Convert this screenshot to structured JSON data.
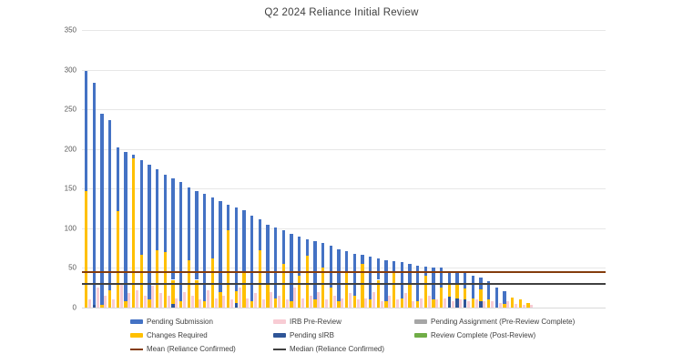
{
  "chart_data": {
    "type": "bar",
    "stacked": true,
    "title": "Q2 2024 Reliance Initial Review",
    "xlabel": "",
    "ylabel": "",
    "ylim": [
      0,
      350
    ],
    "y_ticks": [
      0,
      50,
      100,
      150,
      200,
      250,
      300,
      350
    ],
    "grid": true,
    "legend_position": "bottom",
    "stack_order_bottom_to_top": [
      "pending_sirb",
      "changes_required",
      "pending_submission"
    ],
    "companion_bar_series": "irb_pre_review",
    "series": {
      "pending_submission": {
        "name": "Pending Submission",
        "color": "#4472C4",
        "swatch": "bar"
      },
      "irb_pre_review": {
        "name": "IRB Pre-Review",
        "color": "#F8CCD4",
        "swatch": "bar"
      },
      "pending_assignment": {
        "name": "Pending Assignment (Pre-Review Complete)",
        "color": "#A6A6A6",
        "swatch": "bar"
      },
      "changes_required": {
        "name": "Changes Required",
        "color": "#FFC000",
        "swatch": "bar"
      },
      "pending_sirb": {
        "name": "Pending sIRB",
        "color": "#2F5597",
        "swatch": "bar"
      },
      "review_complete": {
        "name": "Review Complete (Post-Review)",
        "color": "#70AD47",
        "swatch": "bar"
      },
      "mean": {
        "name": "Mean (Reliance Confirmed)",
        "color": "#843C0C",
        "swatch": "line",
        "value": 45
      },
      "median": {
        "name": "Median (Reliance Confirmed)",
        "color": "#404040",
        "swatch": "line",
        "value": 30
      }
    },
    "legend_columns": [
      [
        "pending_submission",
        "changes_required",
        "mean"
      ],
      [
        "irb_pre_review",
        "pending_sirb",
        "median"
      ],
      [
        "pending_assignment",
        "review_complete"
      ]
    ],
    "bars": [
      {
        "pending_sirb": 0,
        "changes_required": 147,
        "pending_submission": 151,
        "irb_pre_review": 10
      },
      {
        "pending_sirb": 3,
        "changes_required": 0,
        "pending_submission": 280,
        "irb_pre_review": 25
      },
      {
        "pending_sirb": 0,
        "changes_required": 3,
        "pending_submission": 242,
        "irb_pre_review": 15
      },
      {
        "pending_sirb": 0,
        "changes_required": 22,
        "pending_submission": 214,
        "irb_pre_review": 10
      },
      {
        "pending_sirb": 0,
        "changes_required": 122,
        "pending_submission": 80,
        "irb_pre_review": 30
      },
      {
        "pending_sirb": 0,
        "changes_required": 8,
        "pending_submission": 188,
        "irb_pre_review": 18
      },
      {
        "pending_sirb": 0,
        "changes_required": 188,
        "pending_submission": 5,
        "irb_pre_review": 22
      },
      {
        "pending_sirb": 0,
        "changes_required": 66,
        "pending_submission": 120,
        "irb_pre_review": 15
      },
      {
        "pending_sirb": 0,
        "changes_required": 10,
        "pending_submission": 170,
        "irb_pre_review": 28
      },
      {
        "pending_sirb": 0,
        "changes_required": 72,
        "pending_submission": 102,
        "irb_pre_review": 18
      },
      {
        "pending_sirb": 0,
        "changes_required": 70,
        "pending_submission": 98,
        "irb_pre_review": 15
      },
      {
        "pending_sirb": 5,
        "changes_required": 30,
        "pending_submission": 128,
        "irb_pre_review": 12
      },
      {
        "pending_sirb": 0,
        "changes_required": 8,
        "pending_submission": 150,
        "irb_pre_review": 20
      },
      {
        "pending_sirb": 0,
        "changes_required": 60,
        "pending_submission": 92,
        "irb_pre_review": 15
      },
      {
        "pending_sirb": 0,
        "changes_required": 35,
        "pending_submission": 112,
        "irb_pre_review": 10
      },
      {
        "pending_sirb": 0,
        "changes_required": 8,
        "pending_submission": 135,
        "irb_pre_review": 22
      },
      {
        "pending_sirb": 0,
        "changes_required": 62,
        "pending_submission": 77,
        "irb_pre_review": 12
      },
      {
        "pending_sirb": 0,
        "changes_required": 20,
        "pending_submission": 114,
        "irb_pre_review": 15
      },
      {
        "pending_sirb": 0,
        "changes_required": 97,
        "pending_submission": 33,
        "irb_pre_review": 10
      },
      {
        "pending_sirb": 6,
        "changes_required": 15,
        "pending_submission": 105,
        "irb_pre_review": 25
      },
      {
        "pending_sirb": 0,
        "changes_required": 45,
        "pending_submission": 78,
        "irb_pre_review": 12
      },
      {
        "pending_sirb": 0,
        "changes_required": 8,
        "pending_submission": 108,
        "irb_pre_review": 18
      },
      {
        "pending_sirb": 0,
        "changes_required": 72,
        "pending_submission": 39,
        "irb_pre_review": 10
      },
      {
        "pending_sirb": 0,
        "changes_required": 30,
        "pending_submission": 75,
        "irb_pre_review": 20
      },
      {
        "pending_sirb": 0,
        "changes_required": 12,
        "pending_submission": 89,
        "irb_pre_review": 15
      },
      {
        "pending_sirb": 0,
        "changes_required": 55,
        "pending_submission": 42,
        "irb_pre_review": 10
      },
      {
        "pending_sirb": 0,
        "changes_required": 8,
        "pending_submission": 85,
        "irb_pre_review": 25
      },
      {
        "pending_sirb": 0,
        "changes_required": 40,
        "pending_submission": 50,
        "irb_pre_review": 12
      },
      {
        "pending_sirb": 0,
        "changes_required": 65,
        "pending_submission": 21,
        "irb_pre_review": 15
      },
      {
        "pending_sirb": 0,
        "changes_required": 10,
        "pending_submission": 74,
        "irb_pre_review": 20
      },
      {
        "pending_sirb": 0,
        "changes_required": 50,
        "pending_submission": 32,
        "irb_pre_review": 10
      },
      {
        "pending_sirb": 0,
        "changes_required": 25,
        "pending_submission": 53,
        "irb_pre_review": 15
      },
      {
        "pending_sirb": 0,
        "changes_required": 8,
        "pending_submission": 66,
        "irb_pre_review": 12
      },
      {
        "pending_sirb": 0,
        "changes_required": 45,
        "pending_submission": 26,
        "irb_pre_review": 18
      },
      {
        "pending_sirb": 0,
        "changes_required": 15,
        "pending_submission": 53,
        "irb_pre_review": 10
      },
      {
        "pending_sirb": 0,
        "changes_required": 55,
        "pending_submission": 11,
        "irb_pre_review": 12
      },
      {
        "pending_sirb": 0,
        "changes_required": 10,
        "pending_submission": 54,
        "irb_pre_review": 20
      },
      {
        "pending_sirb": 0,
        "changes_required": 35,
        "pending_submission": 27,
        "irb_pre_review": 8
      },
      {
        "pending_sirb": 0,
        "changes_required": 8,
        "pending_submission": 52,
        "irb_pre_review": 15
      },
      {
        "pending_sirb": 0,
        "changes_required": 45,
        "pending_submission": 13,
        "irb_pre_review": 10
      },
      {
        "pending_sirb": 0,
        "changes_required": 12,
        "pending_submission": 45,
        "irb_pre_review": 18
      },
      {
        "pending_sirb": 0,
        "changes_required": 30,
        "pending_submission": 25,
        "irb_pre_review": 8
      },
      {
        "pending_sirb": 0,
        "changes_required": 8,
        "pending_submission": 45,
        "irb_pre_review": 12
      },
      {
        "pending_sirb": 0,
        "changes_required": 40,
        "pending_submission": 12,
        "irb_pre_review": 15
      },
      {
        "pending_sirb": 0,
        "changes_required": 10,
        "pending_submission": 41,
        "irb_pre_review": 10
      },
      {
        "pending_sirb": 0,
        "changes_required": 25,
        "pending_submission": 25,
        "irb_pre_review": 12
      },
      {
        "pending_sirb": 14,
        "changes_required": 16,
        "pending_submission": 16,
        "irb_pre_review": 8
      },
      {
        "pending_sirb": 12,
        "changes_required": 18,
        "pending_submission": 16,
        "irb_pre_review": 10
      },
      {
        "pending_sirb": 10,
        "changes_required": 14,
        "pending_submission": 20,
        "irb_pre_review": 8
      },
      {
        "pending_sirb": 0,
        "changes_required": 12,
        "pending_submission": 28,
        "irb_pre_review": 10
      },
      {
        "pending_sirb": 8,
        "changes_required": 15,
        "pending_submission": 15,
        "irb_pre_review": 8
      },
      {
        "pending_sirb": 0,
        "changes_required": 10,
        "pending_submission": 23,
        "irb_pre_review": 8
      },
      {
        "pending_sirb": 0,
        "changes_required": 0,
        "pending_submission": 25,
        "irb_pre_review": 6
      },
      {
        "pending_sirb": 0,
        "changes_required": 5,
        "pending_submission": 16,
        "irb_pre_review": 8
      },
      {
        "pending_sirb": 0,
        "changes_required": 13,
        "pending_submission": 0,
        "irb_pre_review": 5
      },
      {
        "pending_sirb": 0,
        "changes_required": 10,
        "pending_submission": 0,
        "irb_pre_review": 4
      },
      {
        "pending_sirb": 0,
        "changes_required": 6,
        "pending_submission": 0,
        "irb_pre_review": 3
      }
    ]
  }
}
